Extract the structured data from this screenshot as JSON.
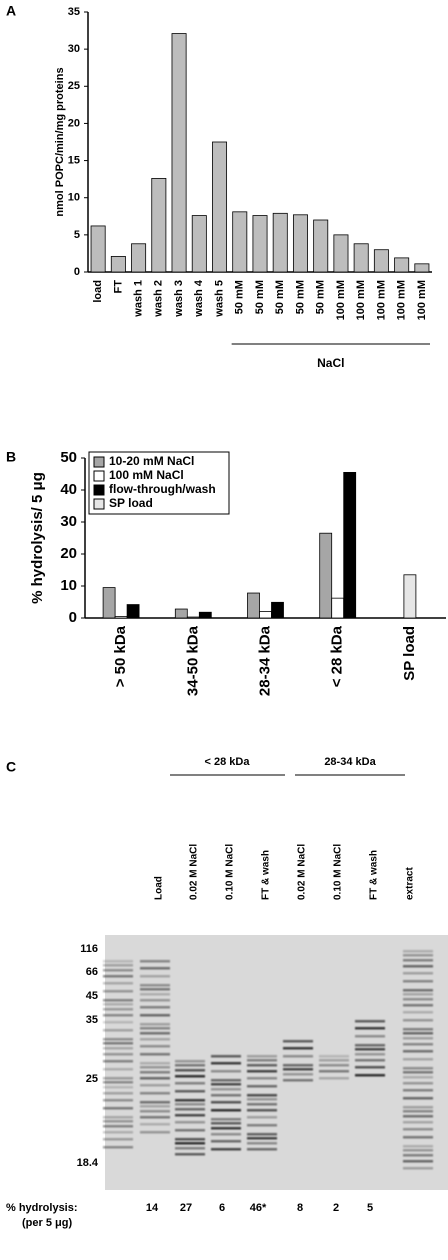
{
  "chart_data": [
    {
      "type": "bar",
      "panel": "A",
      "y_label": "nmol POPC/min/mg proteins",
      "categories": [
        "load",
        "FT",
        "wash 1",
        "wash 2",
        "wash 3",
        "wash 4",
        "wash 5",
        "50 mM",
        "50 mM",
        "50 mM",
        "50 mM",
        "50 mM",
        "100 mM",
        "100 mM",
        "100 mM",
        "100 mM",
        "100 mM"
      ],
      "values": [
        6.2,
        2.1,
        3.8,
        12.6,
        32.1,
        7.6,
        17.5,
        8.1,
        7.6,
        7.9,
        7.7,
        7.0,
        5.0,
        3.8,
        3.0,
        1.9,
        1.1
      ],
      "color": "#bdbdbd",
      "ylim": [
        0,
        35
      ],
      "yticks": [
        0,
        5,
        10,
        15,
        20,
        25,
        30,
        35
      ],
      "group_label": "NaCl"
    },
    {
      "type": "grouped_bar",
      "panel": "B",
      "y_label": "% hydrolysis/ 5 μg",
      "categories": [
        "> 50 kDa",
        "34-50 kDa",
        "28-34 kDa",
        "< 28 kDa",
        "SP load"
      ],
      "series": [
        {
          "name": "10-20 mM NaCl",
          "color": "#a6a6a6",
          "values": [
            9.5,
            2.8,
            7.8,
            26.5,
            null
          ]
        },
        {
          "name": "100 mM NaCl",
          "color": "#ffffff",
          "values": [
            0.5,
            0.3,
            2.0,
            6.2,
            null
          ]
        },
        {
          "name": "flow-through/wash",
          "color": "#000000",
          "values": [
            4.2,
            1.8,
            4.9,
            45.5,
            null
          ]
        },
        {
          "name": "SP load",
          "color": "#e6e6e6",
          "values": [
            null,
            null,
            null,
            null,
            13.5
          ]
        }
      ],
      "ylim": [
        0,
        50
      ],
      "yticks": [
        0,
        10,
        20,
        30,
        40,
        50
      ],
      "legend": "upper left"
    }
  ],
  "gel": {
    "panel": "C",
    "groups": [
      "< 28 kDa",
      "28-34 kDa"
    ],
    "lanes": [
      "Load",
      "0.02 M NaCl",
      "0.10 M NaCl",
      "FT & wash",
      "0.02 M NaCl",
      "0.10 M NaCl",
      "FT & wash",
      "extract"
    ],
    "markers": [
      116,
      66,
      45,
      35,
      25,
      18.4
    ],
    "hydrolysis_label": "% hydrolysis:",
    "hydrolysis_unit": "(per 5 μg)",
    "hydrolysis": [
      "14",
      "27",
      "6",
      "46*",
      "8",
      "2",
      "5"
    ]
  }
}
